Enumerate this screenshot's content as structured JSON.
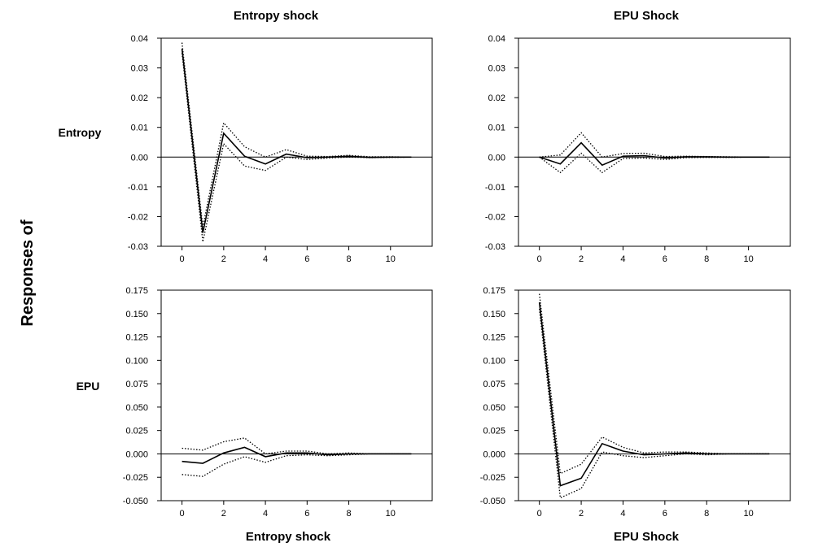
{
  "figure": {
    "ylabel": "Responses of",
    "col_titles_top": [
      "Entropy shock",
      "EPU Shock"
    ],
    "col_titles_bottom": [
      "Entropy shock",
      "EPU Shock"
    ],
    "row_labels": [
      "Entropy",
      "EPU"
    ]
  },
  "chart_data": [
    {
      "type": "line",
      "response": "Entropy",
      "shock": "Entropy shock",
      "x": [
        0,
        1,
        2,
        3,
        4,
        5,
        6,
        7,
        8,
        9,
        10,
        11
      ],
      "xticks": [
        0,
        2,
        4,
        6,
        8,
        10
      ],
      "xlim": [
        -1,
        12
      ],
      "ylim": [
        -0.03,
        0.04
      ],
      "yticks": [
        -0.03,
        -0.02,
        -0.01,
        0.0,
        0.01,
        0.02,
        0.03,
        0.04
      ],
      "ytick_labels": [
        "-0.03",
        "-0.02",
        "-0.01",
        "0.00",
        "0.01",
        "0.02",
        "0.03",
        "0.04"
      ],
      "series": [
        {
          "role": "estimate",
          "values": [
            0.0365,
            -0.0255,
            0.008,
            0.0003,
            -0.0023,
            0.001,
            -0.0002,
            0.0,
            0.0003,
            -0.0001,
            0.0,
            0.0
          ]
        },
        {
          "role": "upper",
          "values": [
            0.0385,
            -0.0235,
            0.0115,
            0.0035,
            0.0,
            0.0025,
            0.0003,
            0.0002,
            0.0006,
            0.0001,
            0.0001,
            0.0
          ]
        },
        {
          "role": "lower",
          "values": [
            0.035,
            -0.0285,
            0.0045,
            -0.003,
            -0.0045,
            0.0,
            -0.0008,
            -0.0003,
            0.0,
            -0.0002,
            -0.0001,
            0.0
          ]
        }
      ]
    },
    {
      "type": "line",
      "response": "Entropy",
      "shock": "EPU Shock",
      "x": [
        0,
        1,
        2,
        3,
        4,
        5,
        6,
        7,
        8,
        9,
        10,
        11
      ],
      "xticks": [
        0,
        2,
        4,
        6,
        8,
        10
      ],
      "xlim": [
        -1,
        12
      ],
      "ylim": [
        -0.03,
        0.04
      ],
      "yticks": [
        -0.03,
        -0.02,
        -0.01,
        0.0,
        0.01,
        0.02,
        0.03,
        0.04
      ],
      "ytick_labels": [
        "-0.03",
        "-0.02",
        "-0.01",
        "0.00",
        "0.01",
        "0.02",
        "0.03",
        "0.04"
      ],
      "series": [
        {
          "role": "estimate",
          "values": [
            0.0,
            -0.0023,
            0.0048,
            -0.0027,
            0.0003,
            0.0005,
            -0.0003,
            0.0001,
            0.0001,
            0.0,
            0.0,
            0.0
          ]
        },
        {
          "role": "upper",
          "values": [
            0.0,
            0.0007,
            0.0082,
            0.0,
            0.0012,
            0.0013,
            0.0002,
            0.0003,
            0.0002,
            0.0001,
            0.0,
            0.0
          ]
        },
        {
          "role": "lower",
          "values": [
            0.0,
            -0.0052,
            0.0013,
            -0.0052,
            -0.0005,
            -0.0003,
            -0.0008,
            -0.0002,
            -0.0001,
            -0.0001,
            0.0,
            0.0
          ]
        }
      ]
    },
    {
      "type": "line",
      "response": "EPU",
      "shock": "Entropy shock",
      "x": [
        0,
        1,
        2,
        3,
        4,
        5,
        6,
        7,
        8,
        9,
        10,
        11
      ],
      "xticks": [
        0,
        2,
        4,
        6,
        8,
        10
      ],
      "xlim": [
        -1,
        12
      ],
      "ylim": [
        -0.05,
        0.175
      ],
      "yticks": [
        -0.05,
        -0.025,
        0,
        0.025,
        0.05,
        0.075,
        0.1,
        0.125,
        0.15,
        0.175
      ],
      "ytick_labels": [
        "-0.050",
        "-0.025",
        "0.000",
        "0.025",
        "0.050",
        "0.075",
        "0.100",
        "0.125",
        "0.150",
        "0.175"
      ],
      "series": [
        {
          "role": "estimate",
          "values": [
            -0.008,
            -0.01,
            0.001,
            0.007,
            -0.003,
            0.001,
            0.001,
            -0.001,
            0.0,
            0.0,
            0.0,
            0.0
          ]
        },
        {
          "role": "upper",
          "values": [
            0.006,
            0.004,
            0.013,
            0.017,
            0.0,
            0.003,
            0.003,
            0.0,
            0.001,
            0.0,
            0.0,
            0.0
          ]
        },
        {
          "role": "lower",
          "values": [
            -0.022,
            -0.024,
            -0.011,
            -0.003,
            -0.009,
            -0.002,
            -0.001,
            -0.002,
            -0.001,
            0.0,
            0.0,
            0.0
          ]
        }
      ]
    },
    {
      "type": "line",
      "response": "EPU",
      "shock": "EPU Shock",
      "x": [
        0,
        1,
        2,
        3,
        4,
        5,
        6,
        7,
        8,
        9,
        10,
        11
      ],
      "xticks": [
        0,
        2,
        4,
        6,
        8,
        10
      ],
      "xlim": [
        -1,
        12
      ],
      "ylim": [
        -0.05,
        0.175
      ],
      "yticks": [
        -0.05,
        -0.025,
        0,
        0.025,
        0.05,
        0.075,
        0.1,
        0.125,
        0.15,
        0.175
      ],
      "ytick_labels": [
        "-0.050",
        "-0.025",
        "0.000",
        "0.025",
        "0.050",
        "0.075",
        "0.100",
        "0.125",
        "0.150",
        "0.175"
      ],
      "series": [
        {
          "role": "estimate",
          "values": [
            0.162,
            -0.034,
            -0.026,
            0.011,
            0.003,
            -0.001,
            0.0,
            0.001,
            0.0,
            0.0,
            0.0,
            0.0
          ]
        },
        {
          "role": "upper",
          "values": [
            0.171,
            -0.021,
            -0.011,
            0.018,
            0.007,
            0.001,
            0.002,
            0.002,
            0.001,
            0.0,
            0.0,
            0.0
          ]
        },
        {
          "role": "lower",
          "values": [
            0.155,
            -0.047,
            -0.037,
            0.002,
            -0.002,
            -0.004,
            -0.002,
            0.0,
            -0.001,
            0.0,
            0.0,
            0.0
          ]
        }
      ]
    }
  ]
}
